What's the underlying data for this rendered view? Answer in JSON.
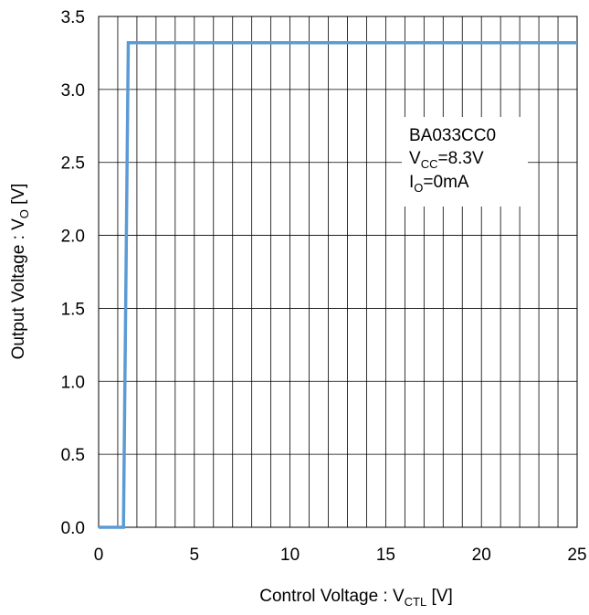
{
  "chart_data": {
    "type": "line",
    "xlabel": {
      "main": "Control Voltage : V",
      "sub": "CTL",
      "unit": " [V]"
    },
    "ylabel": {
      "main": "Output Voltage : V",
      "sub": "O",
      "unit": " [V]"
    },
    "xlim": [
      0,
      25
    ],
    "ylim": [
      0,
      3.5
    ],
    "x_ticks": [
      "0",
      "5",
      "10",
      "15",
      "20",
      "25"
    ],
    "y_ticks": [
      "0.0",
      "0.5",
      "1.0",
      "1.5",
      "2.0",
      "2.5",
      "3.0",
      "3.5"
    ],
    "grid": {
      "vertical_step": 1,
      "horizontal_step": 0.5
    },
    "annotation": {
      "line1": "BA033CC0",
      "line2": {
        "main": "V",
        "sub": "CC",
        "rest": "=8.3V"
      },
      "line3": {
        "main": "I",
        "sub": "O",
        "rest": "=0mA"
      }
    },
    "series": [
      {
        "color": "#5b9bd5",
        "x": [
          0,
          1.3,
          1.3,
          1.55,
          25
        ],
        "y": [
          0,
          0,
          0,
          3.32,
          3.32
        ]
      }
    ]
  }
}
